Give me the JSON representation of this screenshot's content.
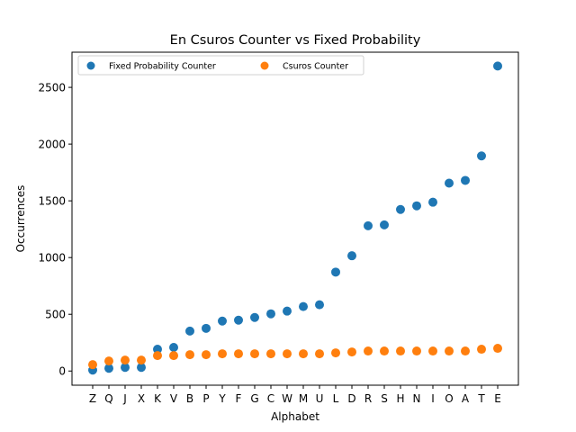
{
  "chart_data": {
    "type": "scatter",
    "title": "En Csuros Counter vs Fixed Probability",
    "xlabel": "Alphabet",
    "ylabel": "Occurrences",
    "categories": [
      "Z",
      "Q",
      "J",
      "X",
      "K",
      "V",
      "B",
      "P",
      "Y",
      "F",
      "G",
      "C",
      "W",
      "M",
      "U",
      "L",
      "D",
      "R",
      "S",
      "H",
      "N",
      "I",
      "O",
      "A",
      "T",
      "E"
    ],
    "ylim": [
      -125,
      2810
    ],
    "yticks": [
      0,
      500,
      1000,
      1500,
      2000,
      2500
    ],
    "grid": false,
    "legend_position": "top-left",
    "legend_columns": 2,
    "series": [
      {
        "name": "Fixed Probability Counter",
        "color": "#1f77b4",
        "values": [
          8,
          24,
          32,
          32,
          192,
          208,
          352,
          376,
          440,
          448,
          472,
          504,
          528,
          568,
          584,
          872,
          1016,
          1280,
          1288,
          1424,
          1456,
          1488,
          1656,
          1680,
          1896,
          2688
        ]
      },
      {
        "name": "Csuros Counter",
        "color": "#ff7f0e",
        "values": [
          56,
          88,
          96,
          96,
          136,
          136,
          144,
          144,
          152,
          152,
          152,
          152,
          152,
          152,
          152,
          160,
          168,
          176,
          176,
          176,
          176,
          176,
          176,
          176,
          192,
          200
        ]
      }
    ]
  }
}
